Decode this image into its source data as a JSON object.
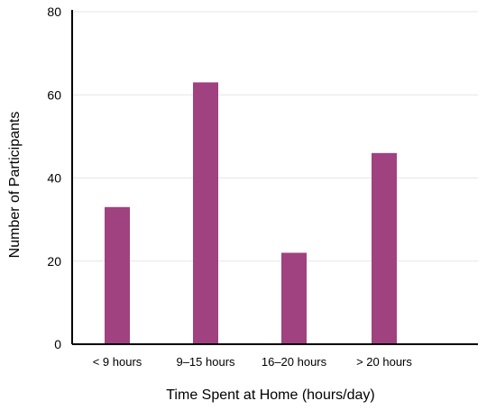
{
  "chart_data": {
    "type": "bar",
    "categories": [
      "< 9 hours",
      "9–15 hours",
      "16–20 hours",
      "> 20 hours"
    ],
    "values": [
      33,
      63,
      22,
      46
    ],
    "xlabel": "Time Spent at Home (hours/day)",
    "ylabel": "Number of Participants",
    "ylim": [
      0,
      80
    ],
    "yticks": [
      0,
      20,
      40,
      60,
      80
    ],
    "bar_color": "#a0427f",
    "grid": true,
    "grid_color": "#e6e6e6",
    "axis_color": "#000000"
  }
}
